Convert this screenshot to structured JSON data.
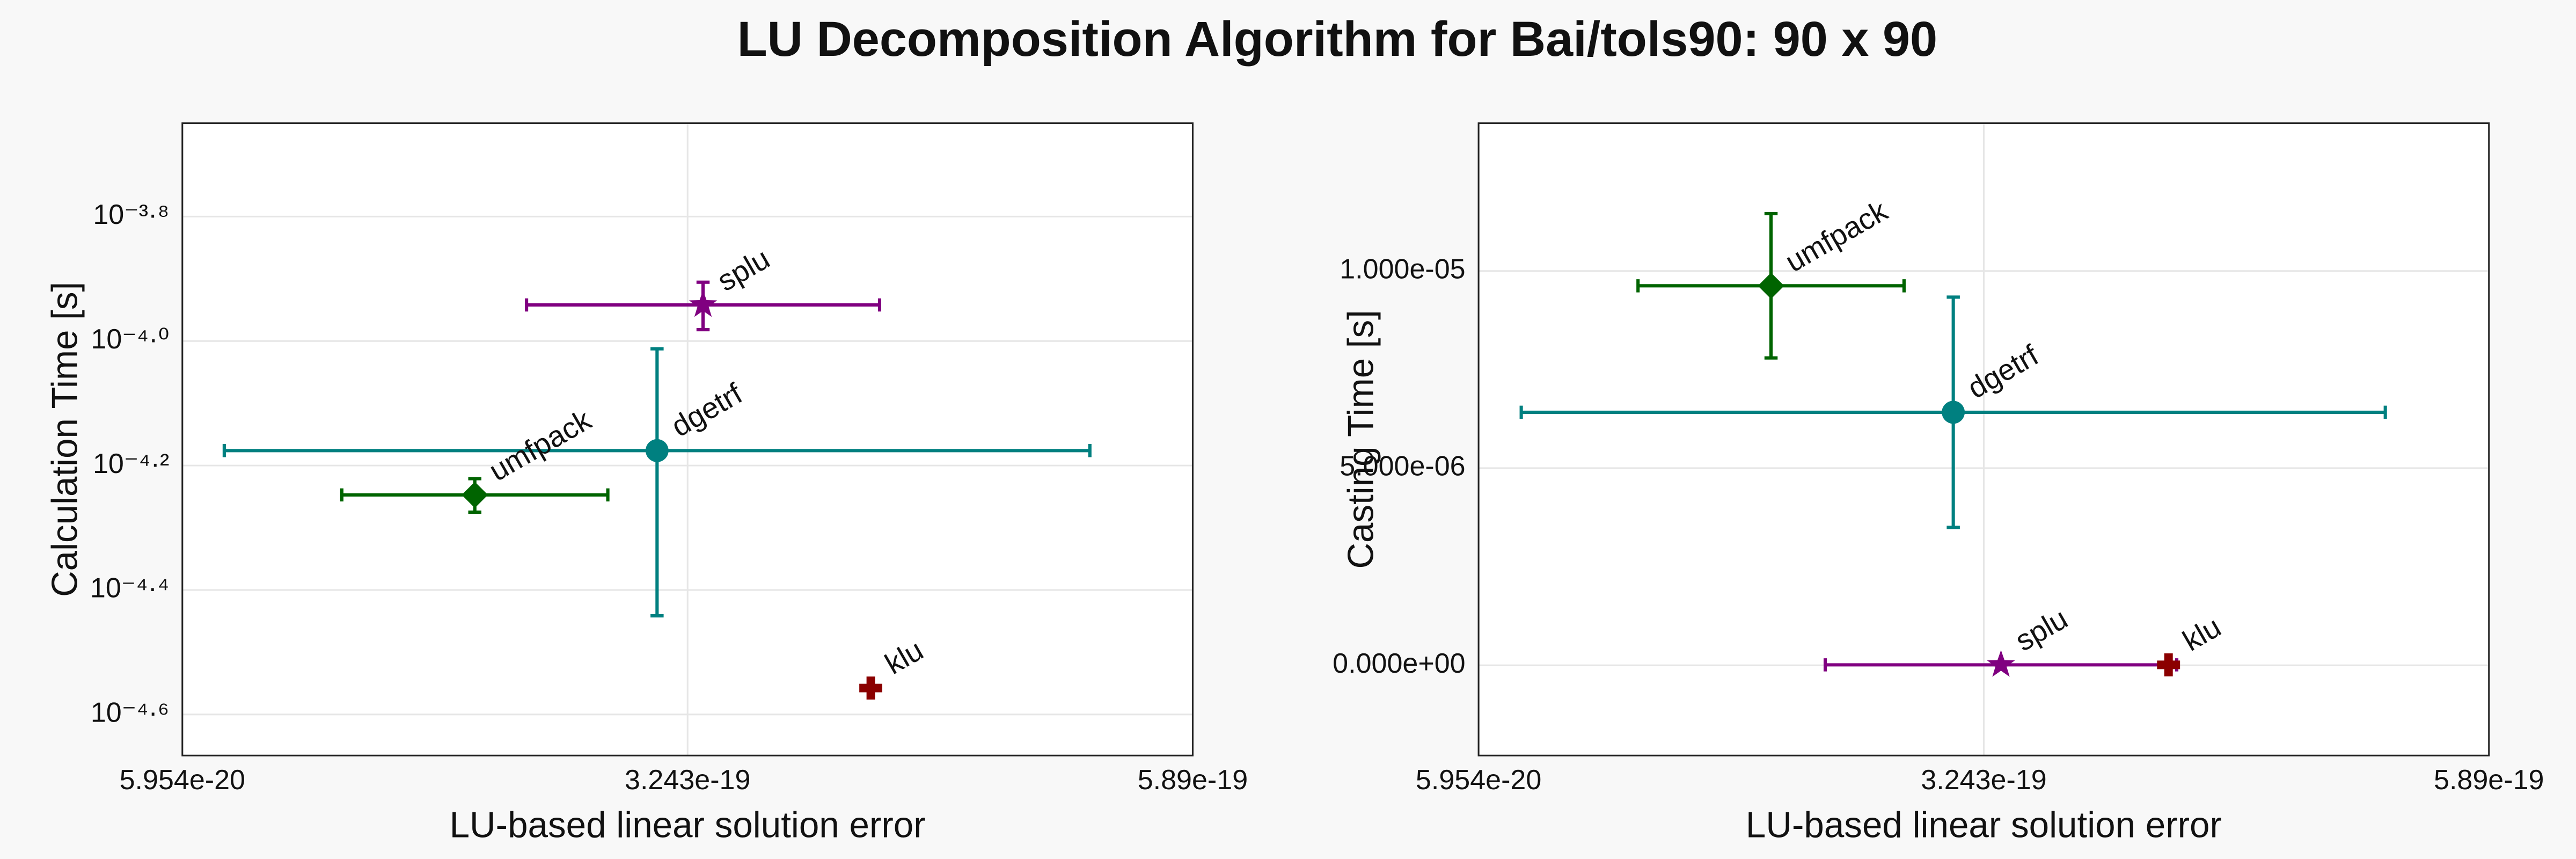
{
  "title": "LU Decomposition Algorithm for Bai/tols90: 90 x 90",
  "chart_data": [
    {
      "type": "scatter",
      "xlabel": "LU-based linear solution error",
      "ylabel": "Calculation Time [s]",
      "xlim": [
        5.954e-20,
        5.89e-19
      ],
      "xticks": [
        5.954e-20,
        3.243e-19,
        5.89e-19
      ],
      "ylog": true,
      "ylim": [
        2.158e-05,
        0.0002239
      ],
      "yticks": [
        {
          "value": 0.00015849,
          "label": "10⁻³·⁸"
        },
        {
          "value": 0.0001,
          "label": "10⁻⁴·⁰"
        },
        {
          "value": 6.3096e-05,
          "label": "10⁻⁴·²"
        },
        {
          "value": 3.9811e-05,
          "label": "10⁻⁴·⁴"
        },
        {
          "value": 2.5119e-05,
          "label": "10⁻⁴·⁶"
        }
      ],
      "grid": true,
      "series": [
        {
          "name": "splu",
          "color": "#800080",
          "marker": "star",
          "x": [
            3.324e-19
          ],
          "values": [
            0.0001143
          ],
          "xerr": [
            9.25e-20
          ],
          "yerr": [
            1e-05
          ]
        },
        {
          "name": "dgetrf",
          "color": "#008080",
          "marker": "circle",
          "x": [
            3.083e-19
          ],
          "values": [
            6.668e-05
          ],
          "xerr": [
            2.268e-19
          ],
          "yerr": [
            3.05e-05
          ]
        },
        {
          "name": "umfpack",
          "color": "#006400",
          "marker": "diamond",
          "x": [
            2.128e-19
          ],
          "values": [
            5.66e-05
          ],
          "xerr": [
            6.97e-20
          ],
          "yerr": [
            3.5e-06
          ]
        },
        {
          "name": "klu",
          "color": "#8b0000",
          "marker": "plus",
          "x": [
            4.203e-19
          ],
          "values": [
            2.77e-05
          ],
          "xerr": [
            0
          ],
          "yerr": [
            0
          ]
        }
      ]
    },
    {
      "type": "scatter",
      "xlabel": "LU-based linear solution error",
      "ylabel": "Casting Time [s]",
      "xlim": [
        5.954e-20,
        5.89e-19
      ],
      "xticks": [
        5.954e-20,
        3.243e-19,
        5.89e-19
      ],
      "ylog": false,
      "ylim": [
        -2.29e-06,
        1.375e-05
      ],
      "yticks": [
        {
          "value": 0,
          "label": "0.000e+00"
        },
        {
          "value": 5e-06,
          "label": "5.000e-06"
        },
        {
          "value": 1e-05,
          "label": "1.000e-05"
        }
      ],
      "grid": true,
      "series": [
        {
          "name": "umfpack",
          "color": "#006400",
          "marker": "diamond",
          "x": [
            2.128e-19
          ],
          "values": [
            9.625e-06
          ],
          "xerr": [
            6.97e-20
          ],
          "yerr": [
            1.83e-06
          ]
        },
        {
          "name": "dgetrf",
          "color": "#008080",
          "marker": "circle",
          "x": [
            3.083e-19
          ],
          "values": [
            6.417e-06
          ],
          "xerr": [
            2.264e-19
          ],
          "yerr": [
            2.92e-06
          ]
        },
        {
          "name": "splu",
          "color": "#800080",
          "marker": "star",
          "x": [
            3.333e-19
          ],
          "values": [
            1e-08
          ],
          "xerr": [
            9.21e-20
          ],
          "yerr": [
            0
          ]
        },
        {
          "name": "klu",
          "color": "#8b0000",
          "marker": "plus",
          "x": [
            4.211e-19
          ],
          "values": [
            1e-08
          ],
          "xerr": [
            0
          ],
          "yerr": [
            0
          ]
        }
      ]
    }
  ]
}
